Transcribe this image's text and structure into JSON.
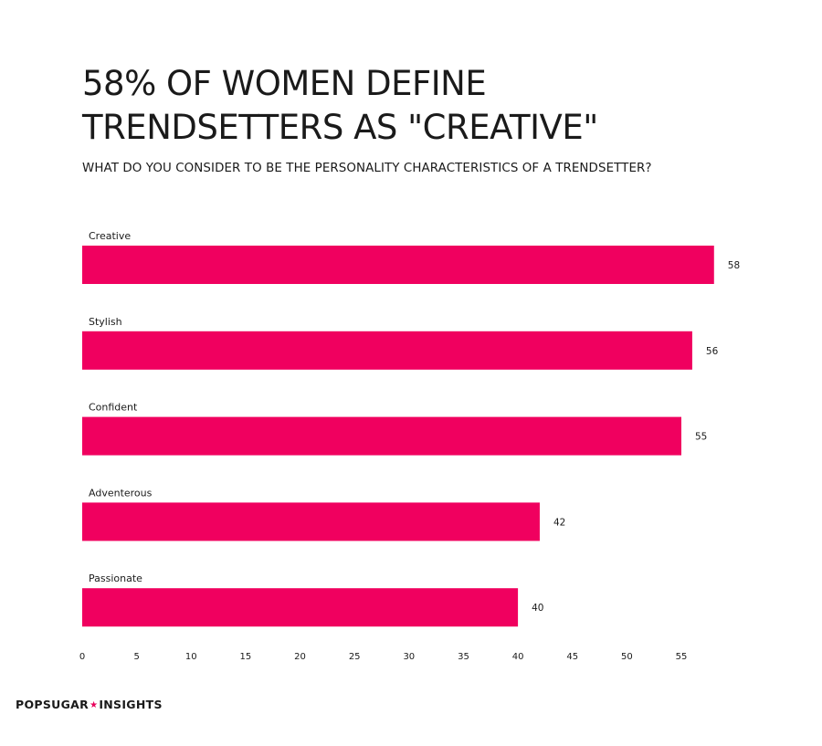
{
  "header": {
    "title_line1": "58% OF WOMEN DEFINE",
    "title_line2": "TRENDSETTERS AS \"CREATIVE\"",
    "subtitle": "WHAT DO YOU CONSIDER TO BE THE PERSONALITY CHARACTERISTICS OF A TRENDSETTER?"
  },
  "brand": {
    "left": "POPSUGAR",
    "separator": "★",
    "right": "INSIGHTS",
    "accent_color": "#e8005a"
  },
  "chart_data": {
    "type": "bar",
    "orientation": "horizontal",
    "categories": [
      "Creative",
      "Stylish",
      "Confident",
      "Adventerous",
      "Passionate"
    ],
    "values": [
      58,
      56,
      55,
      42,
      40
    ],
    "title": "58% OF WOMEN DEFINE TRENDSETTERS AS \"CREATIVE\"",
    "subtitle": "WHAT DO YOU CONSIDER TO BE THE PERSONALITY CHARACTERISTICS OF A TRENDSETTER?",
    "xlabel": "",
    "ylabel": "",
    "xlim": [
      0,
      58
    ],
    "xticks": [
      0,
      5,
      10,
      15,
      20,
      25,
      30,
      35,
      40,
      45,
      50,
      55
    ],
    "grid": false,
    "legend": "none",
    "bar_color": "#f0005f",
    "data_labels": true
  }
}
